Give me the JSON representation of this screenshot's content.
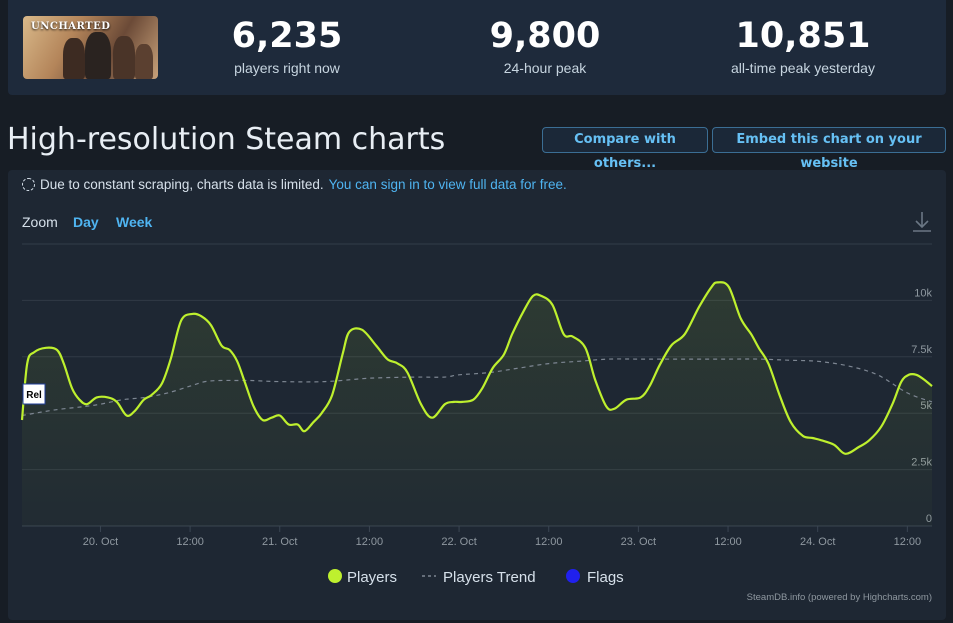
{
  "game": {
    "thumbnail_text": "UNCHARTED"
  },
  "stats": [
    {
      "value": "6,235",
      "label": "players right now"
    },
    {
      "value": "9,800",
      "label": "24-hour peak"
    },
    {
      "value": "10,851",
      "label": "all-time peak yesterday"
    }
  ],
  "title": "High-resolution Steam charts",
  "buttons": {
    "compare": "Compare with others...",
    "embed": "Embed this chart on your website"
  },
  "notice": {
    "text": "Due to constant scraping, charts data is limited.",
    "link": "You can sign in to view full data for free."
  },
  "zoom": {
    "label": "Zoom",
    "options": [
      "Day",
      "Week"
    ]
  },
  "credits": "SteamDB.info (powered by Highcharts.com)",
  "colors": {
    "players": "#bef02e",
    "trend": "#7d8692",
    "flags": "#2020ee",
    "link": "#4fb4f1",
    "background": "#171d25",
    "panel": "#1e2733"
  },
  "icons": {
    "download": "download-icon"
  },
  "chart_data": {
    "type": "line",
    "x_unit": "hours since 20 Oct 00:00",
    "xlim": [
      -10.5,
      111.3
    ],
    "ylim": [
      0,
      12500
    ],
    "grid": true,
    "y_ticks": [
      {
        "value": 0,
        "label": "0"
      },
      {
        "value": 2500,
        "label": "2.5k"
      },
      {
        "value": 5000,
        "label": "5k"
      },
      {
        "value": 7500,
        "label": "7.5k"
      },
      {
        "value": 10000,
        "label": "10k"
      }
    ],
    "x_ticks": [
      {
        "value": 0,
        "label": "20. Oct"
      },
      {
        "value": 12,
        "label": "12:00"
      },
      {
        "value": 24,
        "label": "21. Oct"
      },
      {
        "value": 36,
        "label": "12:00"
      },
      {
        "value": 48,
        "label": "22. Oct"
      },
      {
        "value": 60,
        "label": "12:00"
      },
      {
        "value": 72,
        "label": "23. Oct"
      },
      {
        "value": 84,
        "label": "12:00"
      },
      {
        "value": 96,
        "label": "24. Oct"
      },
      {
        "value": 108,
        "label": "12:00"
      }
    ],
    "flag_label": "Rel",
    "flag_x": -10.5,
    "legend": {
      "position": "bottom-center"
    },
    "series": [
      {
        "name": "Players",
        "x": [
          -10.5,
          -9.8,
          -8.9,
          -7.3,
          -5.8,
          -4.9,
          -3.8,
          -2.8,
          -1.8,
          -0.5,
          1.0,
          2.2,
          3.5,
          4.6,
          5.8,
          6.8,
          8.2,
          9.4,
          10.8,
          12.3,
          13.5,
          14.8,
          16.2,
          17.3,
          18.3,
          19.3,
          20.5,
          21.7,
          22.9,
          24.0,
          25.2,
          26.4,
          27.3,
          28.5,
          29.6,
          31.0,
          32.4,
          33.3,
          35.0,
          36.9,
          38.4,
          39.8,
          41.1,
          42.9,
          44.4,
          46.1,
          47.3,
          48.4,
          49.9,
          51.1,
          52.5,
          54.0,
          55.1,
          56.6,
          57.9,
          59.0,
          60.5,
          62.0,
          63.2,
          64.9,
          66.2,
          67.7,
          68.8,
          70.4,
          72.3,
          73.5,
          74.8,
          76.4,
          78.2,
          80.1,
          81.8,
          82.6,
          84.1,
          85.7,
          87.1,
          88.1,
          89.4,
          90.9,
          92.4,
          94.0,
          95.3,
          96.5,
          98.2,
          99.7,
          101.5,
          102.9,
          104.5,
          106.0,
          107.2,
          108.2,
          109.2,
          110.2,
          111.3
        ],
        "y": [
          4700,
          7200,
          7700,
          7900,
          7800,
          7200,
          6100,
          5600,
          5400,
          5700,
          5700,
          5500,
          4900,
          5100,
          5600,
          5800,
          6300,
          7400,
          9100,
          9400,
          9300,
          8900,
          8000,
          7800,
          7300,
          6400,
          5300,
          4700,
          4800,
          4900,
          4500,
          4500,
          4200,
          4600,
          5000,
          5800,
          7600,
          8600,
          8700,
          8000,
          7400,
          7200,
          6800,
          5400,
          4800,
          5400,
          5500,
          5500,
          5600,
          6100,
          7000,
          7600,
          8500,
          9500,
          10200,
          10200,
          9800,
          8500,
          8400,
          7900,
          6500,
          5300,
          5200,
          5600,
          5700,
          6200,
          7100,
          8000,
          8500,
          9700,
          10600,
          10800,
          10600,
          9200,
          8500,
          7900,
          7200,
          5800,
          4600,
          4000,
          3900,
          3800,
          3600,
          3200,
          3500,
          3800,
          4400,
          5400,
          6400,
          6700,
          6700,
          6500,
          6200
        ]
      },
      {
        "name": "Players Trend",
        "x": [
          -10.5,
          -6.0,
          -2.0,
          0.0,
          3.0,
          6.0,
          9.0,
          12.0,
          14.0,
          16.0,
          18.0,
          20.0,
          24.0,
          30.0,
          36.0,
          42.0,
          46.0,
          48.0,
          52.0,
          56.0,
          60.0,
          64.0,
          68.0,
          72.0,
          76.0,
          80.0,
          84.0,
          88.0,
          92.0,
          96.0,
          100.0,
          104.0,
          108.0,
          111.3
        ],
        "y": [
          4900,
          5150,
          5300,
          5400,
          5600,
          5700,
          5900,
          6200,
          6400,
          6450,
          6450,
          6450,
          6400,
          6400,
          6550,
          6600,
          6600,
          6700,
          6800,
          7000,
          7200,
          7300,
          7400,
          7400,
          7400,
          7400,
          7400,
          7400,
          7350,
          7300,
          7100,
          6700,
          5900,
          5500
        ]
      }
    ]
  }
}
